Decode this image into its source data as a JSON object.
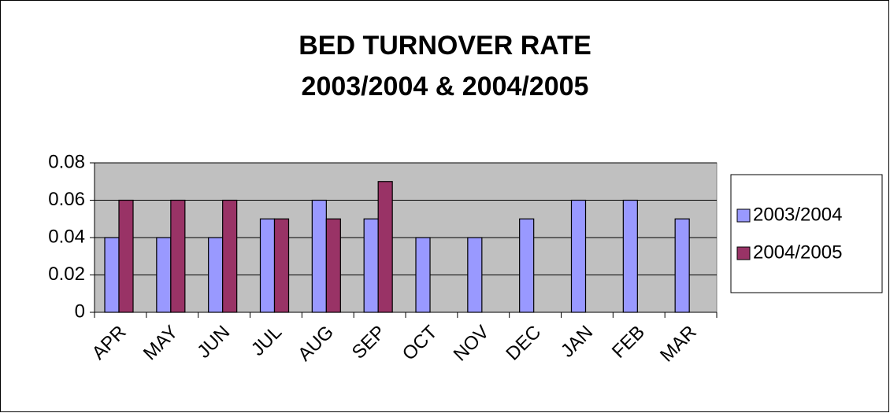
{
  "chart_data": {
    "type": "bar",
    "title": [
      "BED TURNOVER RATE",
      "2003/2004 & 2004/2005"
    ],
    "categories": [
      "APR",
      "MAY",
      "JUN",
      "JUL",
      "AUG",
      "SEP",
      "OCT",
      "NOV",
      "DEC",
      "JAN",
      "FEB",
      "MAR"
    ],
    "series": [
      {
        "name": "2003/2004",
        "color": "#9999ff",
        "values": [
          0.04,
          0.04,
          0.04,
          0.05,
          0.06,
          0.05,
          0.04,
          0.04,
          0.05,
          0.06,
          0.06,
          0.05
        ]
      },
      {
        "name": "2004/2005",
        "color": "#993366",
        "values": [
          0.06,
          0.06,
          0.06,
          0.05,
          0.05,
          0.07,
          null,
          null,
          null,
          null,
          null,
          null
        ]
      }
    ],
    "ylim": [
      0,
      0.08
    ],
    "yticks": [
      0,
      0.02,
      0.04,
      0.06,
      0.08
    ],
    "grid": true,
    "legend": "right"
  }
}
